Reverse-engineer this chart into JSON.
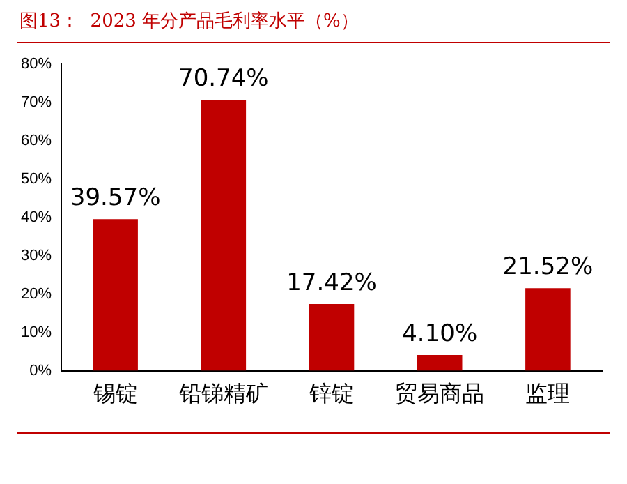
{
  "chart_data": {
    "type": "bar",
    "title": "图13：  2023 年分产品毛利率水平（%）",
    "categories": [
      "锡锭",
      "铅锑精矿",
      "锌锭",
      "贸易商品",
      "监理"
    ],
    "values": [
      39.57,
      70.74,
      17.42,
      4.1,
      21.52
    ],
    "value_labels": [
      "39.57%",
      "70.74%",
      "17.42%",
      "4.10%",
      "21.52%"
    ],
    "color": "#c00000",
    "ylim": [
      0,
      80
    ],
    "yticks": [
      {
        "value": 0,
        "label": "0%"
      },
      {
        "value": 10,
        "label": "10%"
      },
      {
        "value": 20,
        "label": "20%"
      },
      {
        "value": 30,
        "label": "30%"
      },
      {
        "value": 40,
        "label": "40%"
      },
      {
        "value": 50,
        "label": "50%"
      },
      {
        "value": 60,
        "label": "60%"
      },
      {
        "value": 70,
        "label": "70%"
      },
      {
        "value": 80,
        "label": "80%"
      }
    ],
    "grid": false,
    "legend": false
  }
}
